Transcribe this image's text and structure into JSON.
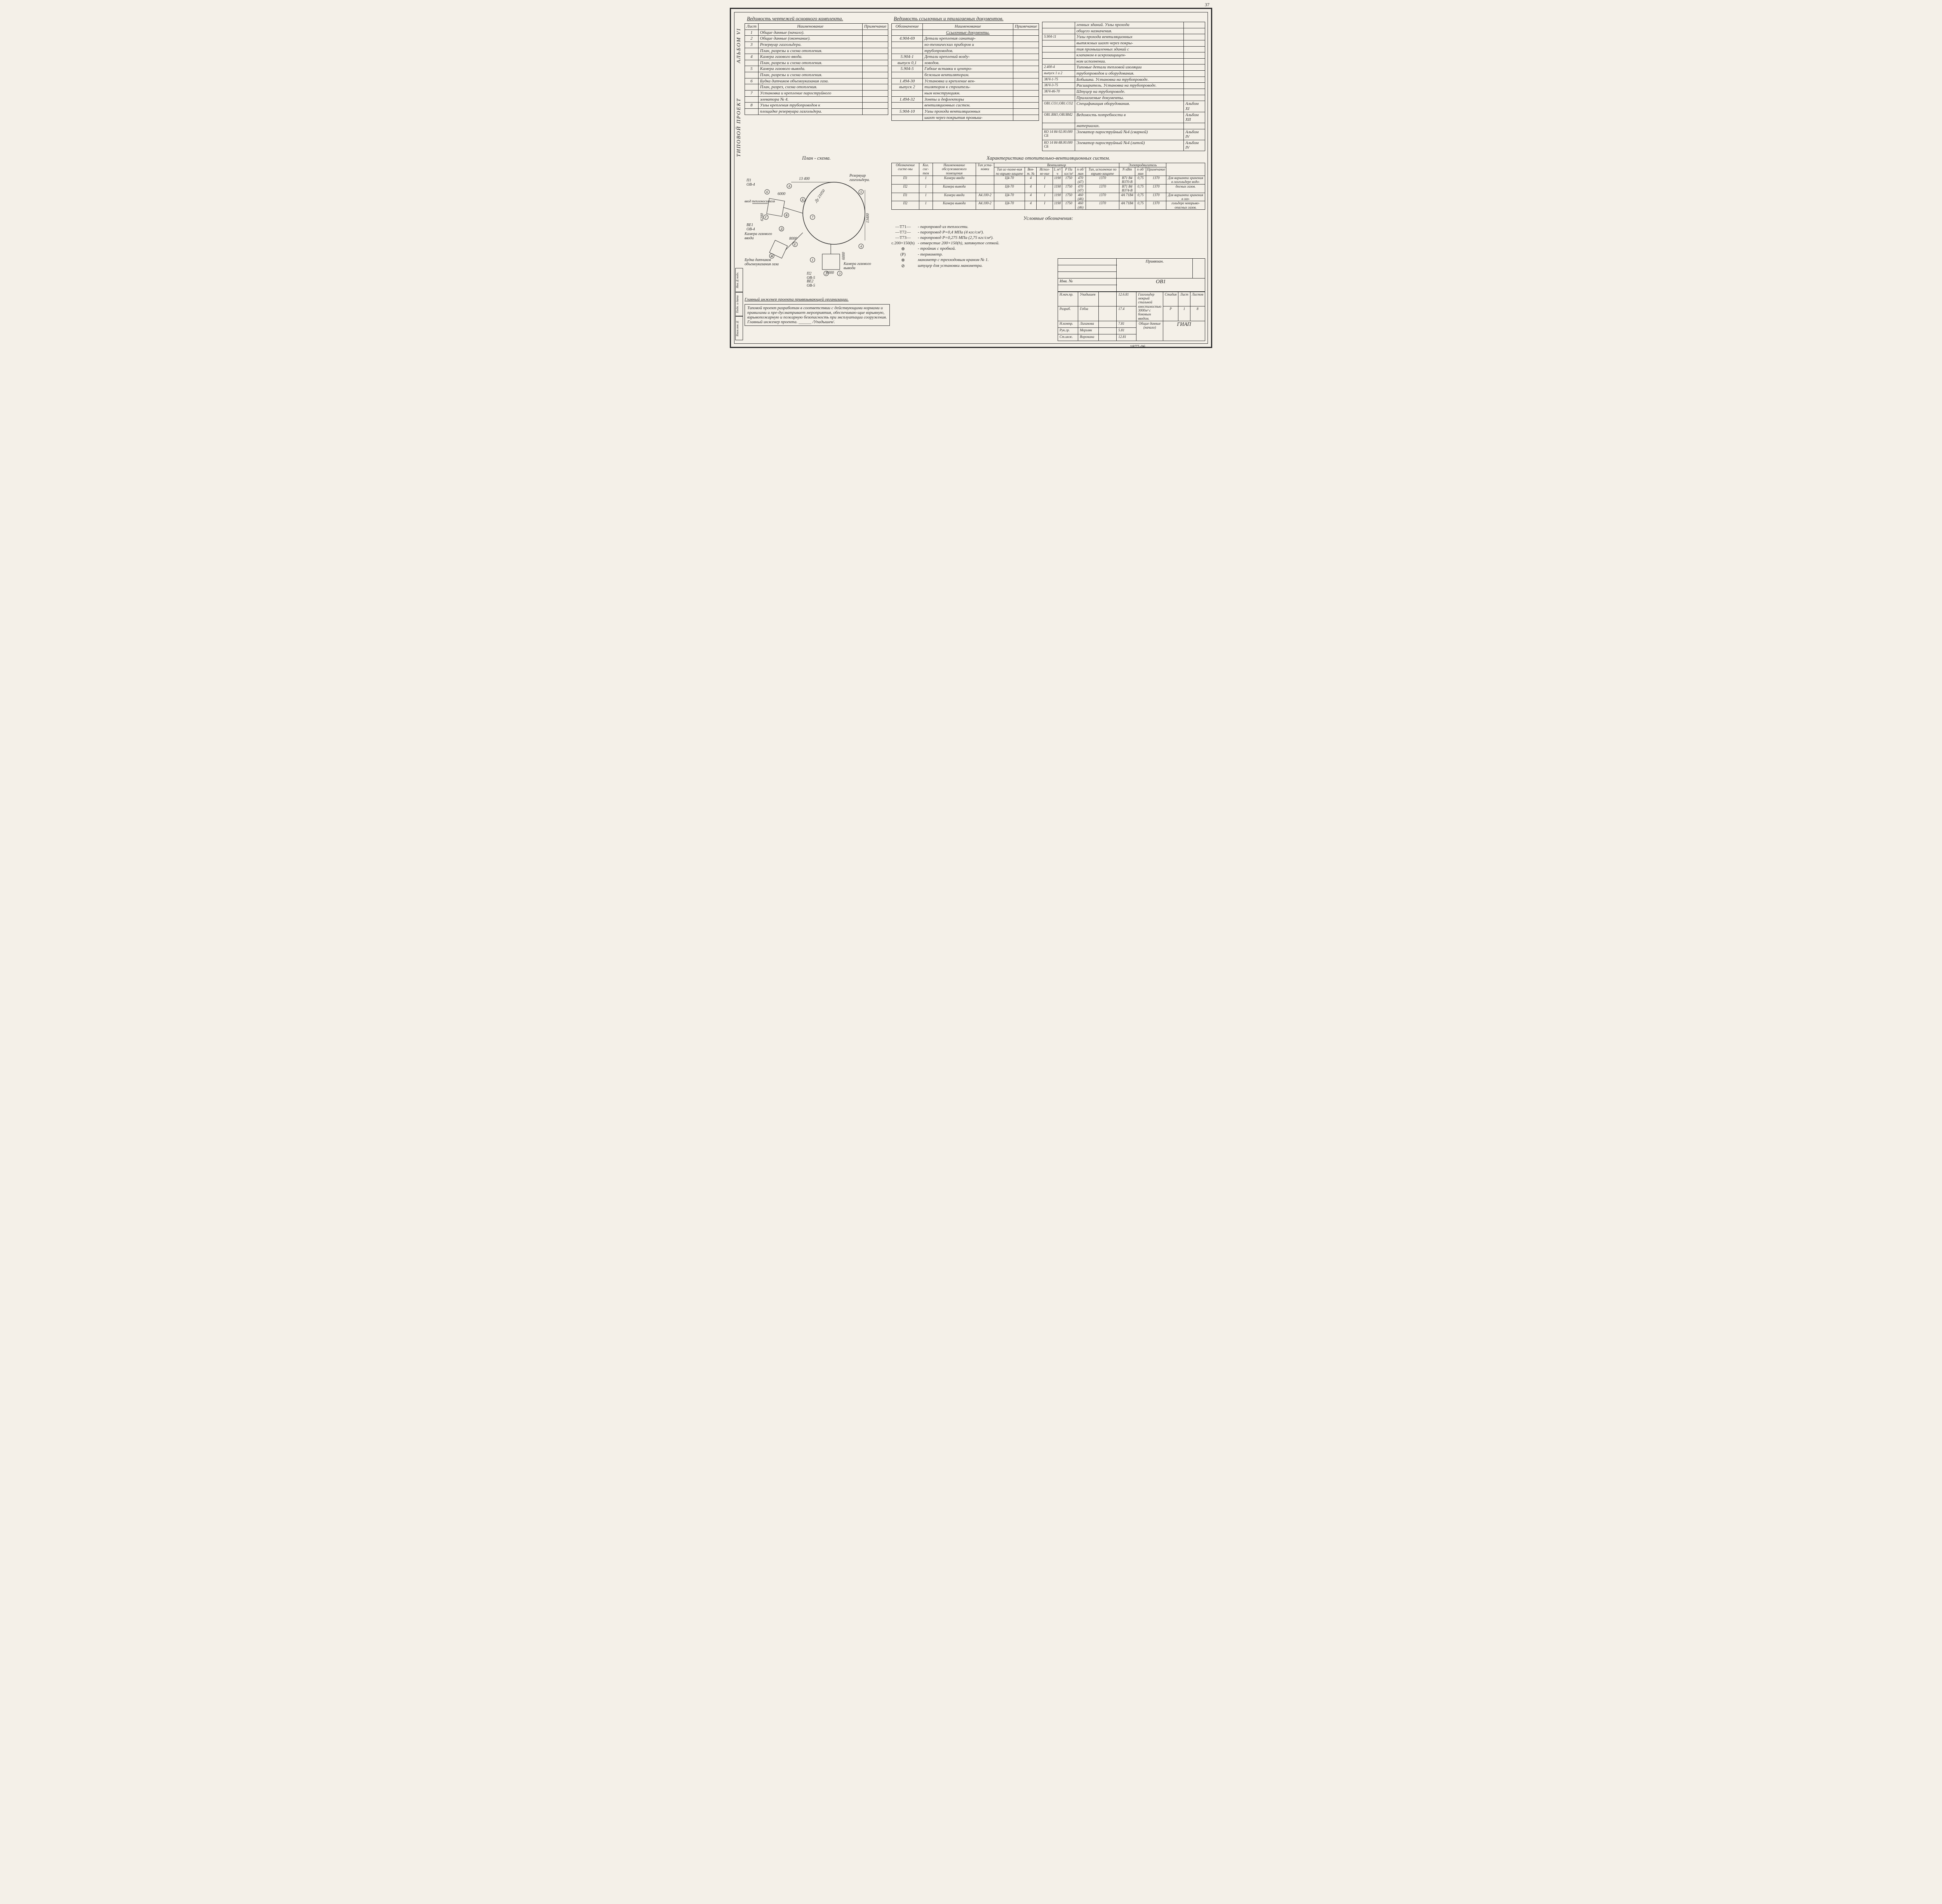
{
  "page_number": "37",
  "side": {
    "album": "АЛЬБОМ VI",
    "project": "ТИПОВОЙ ПРОЕКТ"
  },
  "side_small": [
    "Инв.№подл.",
    "Подп. и дата",
    "Взам.инв.№"
  ],
  "headings": {
    "t1": "Ведомость чертежей основного комплекта.",
    "t2": "Ведомость ссылочных и прилагаемых документов.",
    "plan": "План - схема.",
    "char": "Характеристика отопительно-вентиляционных систем.",
    "legend": "Условные обозначения:"
  },
  "t1": {
    "cols": [
      "Лист",
      "Наименование",
      "Примечание"
    ],
    "rows": [
      [
        "1",
        "Общие данные (начало).",
        ""
      ],
      [
        "2",
        "Общие данные (окончание).",
        ""
      ],
      [
        "3",
        "Резервуар газгольдера.",
        ""
      ],
      [
        "",
        "План, разрезы и схема отопления.",
        ""
      ],
      [
        "4",
        "Камера газового ввода.",
        ""
      ],
      [
        "",
        "План, разрезы и схема отопления.",
        ""
      ],
      [
        "5",
        "Камера газового вывода.",
        ""
      ],
      [
        "",
        "План, разрезы и схема отопления.",
        ""
      ],
      [
        "6",
        "Будка датчиков объемоуказания газа.",
        ""
      ],
      [
        "",
        "План, разрез, схема отопления.",
        ""
      ],
      [
        "7",
        "Установка и крепление пароструйного",
        ""
      ],
      [
        "",
        "элеватора № 4.",
        ""
      ],
      [
        "8",
        "Узлы крепления трубопроводов к",
        ""
      ],
      [
        "",
        "площадке резервуара газгольдера.",
        ""
      ]
    ]
  },
  "t2": {
    "cols": [
      "Обозначение",
      "Наименование",
      "Примечание"
    ],
    "section1": "Ссылочные документы.",
    "rows_a": [
      [
        "4.904-69",
        "Детали крепления санитар-",
        ""
      ],
      [
        "",
        "но-технических приборов и",
        ""
      ],
      [
        "",
        "трубопроводов.",
        ""
      ],
      [
        "5.904-1",
        "Детали креплений возду-",
        ""
      ],
      [
        "выпуск 0,1",
        "ховодов.",
        ""
      ],
      [
        "5.904-5",
        "Гибкие вставки к центро-",
        ""
      ],
      [
        "",
        "бежным вентиляторам.",
        ""
      ],
      [
        "1.494-30",
        "Установка и крепление вен-",
        ""
      ],
      [
        "выпуск 2",
        "тиляторов к строитель-",
        ""
      ],
      [
        "",
        "ным конструкциям.",
        ""
      ],
      [
        "1.494-32",
        "Зонты и дефлекторы",
        ""
      ],
      [
        "",
        "вентиляционных систем.",
        ""
      ],
      [
        "5.904-10",
        "Узлы прохода вентиляционных",
        ""
      ],
      [
        "",
        "шахт через покрытия промыш-",
        ""
      ]
    ],
    "rows_b": [
      [
        "",
        "ленных зданий. Узлы прохода",
        ""
      ],
      [
        "",
        "общего назначения.",
        ""
      ],
      [
        "5.904-11",
        "Узлы прохода вентиляционных",
        ""
      ],
      [
        "",
        "вытяжных шахт через покры-",
        ""
      ],
      [
        "",
        "тия промышленных зданий с",
        ""
      ],
      [
        "",
        "клапаном в искрозащищен-",
        ""
      ],
      [
        "",
        "ном исполнении.",
        ""
      ],
      [
        "2.400-4",
        "Типовые детали тепловой изоляции",
        ""
      ],
      [
        "выпуск 1 и 2",
        "трубопроводов и оборудования.",
        ""
      ],
      [
        "3КЧ-1-75",
        "Бобышка. Установка на трубопроводе.",
        ""
      ],
      [
        "3КЧ-3-75",
        "Расширитель. Установка на трубопроводе.",
        ""
      ],
      [
        "3КЧ-46-70",
        "Штуцер на трубопроводе.",
        ""
      ],
      [
        "",
        "Прилагаемые документы.",
        ""
      ],
      [
        "ОВ1.СО1;ОВ1.СО2",
        "Спецификация оборудования.",
        "Альбом XI"
      ],
      [
        "ОВ1.ВМ1;ОВ1ВМ2",
        "Ведомость потребности в",
        "Альбом XII"
      ],
      [
        "",
        "материалах.",
        ""
      ],
      [
        "КО 14 84-92.00.000 СБ",
        "Элеватор пароструйный №4 (сварной)",
        "Альбом IV"
      ],
      [
        "КО 14 84-88.00.000 СБ",
        "Элеватор пароструйный №4 (литой)",
        "Альбом IV"
      ]
    ]
  },
  "plan": {
    "labels": {
      "p1": "П1\nОВ-4",
      "be1": "ВЕ1\nОВ-4",
      "dim1": "13 400",
      "dim2": "6000",
      "dim3": "6200",
      "dim4": "8000",
      "dim5": "13400",
      "dim6": "6000",
      "dim7": "6000",
      "d": "Ду 21050",
      "reservoir": "Резервуар\nгазгольдера.",
      "teplo": "ввод теплоносителя",
      "kam_in": "Камера газового\nввода",
      "budka": "Будка датчиков\nобъемоуказания газа",
      "kam_out": "Камера газового\nвывода",
      "p2": "П2\nОВ-5",
      "be2": "ВЕ2\nОВ-5"
    },
    "bubbles": [
      "А",
      "Б",
      "В",
      "Г",
      "Д",
      "Е",
      "Ж",
      "1",
      "2",
      "3",
      "4",
      "5",
      "6",
      "7"
    ]
  },
  "char_table": {
    "head1": [
      "Обозначение систе-мы",
      "Кол. сис-тем",
      "Наименование обслуживаемого помещения",
      "Тип уста-новки",
      "Вентилятор",
      "",
      "",
      "",
      "",
      "",
      "",
      "Электродвигатель",
      "",
      "",
      "",
      ""
    ],
    "head2": [
      "",
      "",
      "",
      "",
      "Тип ис-полне-ния по взрыво-защите",
      "Вен-т. №",
      "Испол-не-ние",
      "L м³/ч",
      "P Па кгс/м²",
      "n об/мин",
      "Тип, исполнение по взрыво-защите",
      "N кВт",
      "n об/мин",
      "Примечание"
    ],
    "rows": [
      [
        "П1",
        "1",
        "Камера ввода",
        "",
        "Ц4-70",
        "4",
        "I",
        "1190",
        "1750",
        "470 (47)",
        "1370",
        "В71 В4 В370-В",
        "0,75",
        "1370",
        "Для варианта хранения в газгольдере водо-"
      ],
      [
        "П2",
        "1",
        "Камера вывода",
        "",
        "Ц4-70",
        "4",
        "I",
        "1190",
        "1750",
        "470 (47)",
        "1370",
        "В71 В4 В374-В",
        "0,75",
        "1370",
        "досных газов."
      ],
      [
        "П1",
        "1",
        "Камера ввода",
        "А4.100-2",
        "Ц4-70",
        "4",
        "I",
        "1190",
        "1750",
        "460 (46)",
        "1370",
        "4А 71В4",
        "0,75",
        "1370",
        "Для варианта хранения в газ-"
      ],
      [
        "П2",
        "1",
        "Камера вывода",
        "А4.100-2",
        "Ц4-70",
        "4",
        "I",
        "1190",
        "1750",
        "460 (46)",
        "1370",
        "4А 71В4",
        "0,75",
        "1370",
        "гольдере невзрыво-опасных газов."
      ]
    ]
  },
  "legend": [
    [
      "—Т71—",
      "- паропровод из теплосети."
    ],
    [
      "—Т72—",
      "- паропровод Р=0,4 МПа (4 кгс/см²)."
    ],
    [
      "—Т73—",
      "- паропровод Р=0,275 МПа (2,75 кгс/см²)."
    ],
    [
      "с.200×150(h)",
      "- отверстие 200×150(h), затянутое сеткой."
    ],
    [
      "⊕",
      "- тройник с пробкой."
    ],
    [
      "(P)",
      "- термометр."
    ],
    [
      "⊗",
      "манометр с трехходовым краном № 1."
    ],
    [
      "⊘",
      "штуцер для установки манометра."
    ]
  ],
  "chief_line": "Главный инженер проекта привязывающей организации.",
  "notes": "Типовой проект разработан в соответствии с действующими нормами и правилами и пре-дусматривает мероприятия, обеспечиваю-щие взрывную, взрывопожарную и пожарную безопасность при эксплуатации сооружения.\nГлавный инженер проекта. ______ /Упадышев/.",
  "title_block": {
    "bound": "Привязан.",
    "code": "ОВ1",
    "descr": "Газгольдер мокрый стальной вместимостью 3000м³ с боковым вводом.",
    "stage_h": [
      "Стадия",
      "Лист",
      "Листов"
    ],
    "stage": [
      "Р",
      "1",
      "8"
    ],
    "title": "Общие данные\n(начало)",
    "org": "ГИАП",
    "inv": "Инв. №",
    "sign_rows": [
      [
        "Н.нач.пр.",
        "Упадышев",
        "",
        "12.6.81"
      ],
      [
        "Разраб.",
        "Гобза",
        "",
        "17.4"
      ],
      [
        "Н.контр.",
        "Лиханова",
        "",
        "7.81"
      ],
      [
        "Рук.гр.",
        "Мерзляк",
        "",
        "5.81"
      ],
      [
        "Ст.инж.",
        "Воронина",
        "",
        "12.81"
      ]
    ]
  },
  "doc_number": "1877-06"
}
